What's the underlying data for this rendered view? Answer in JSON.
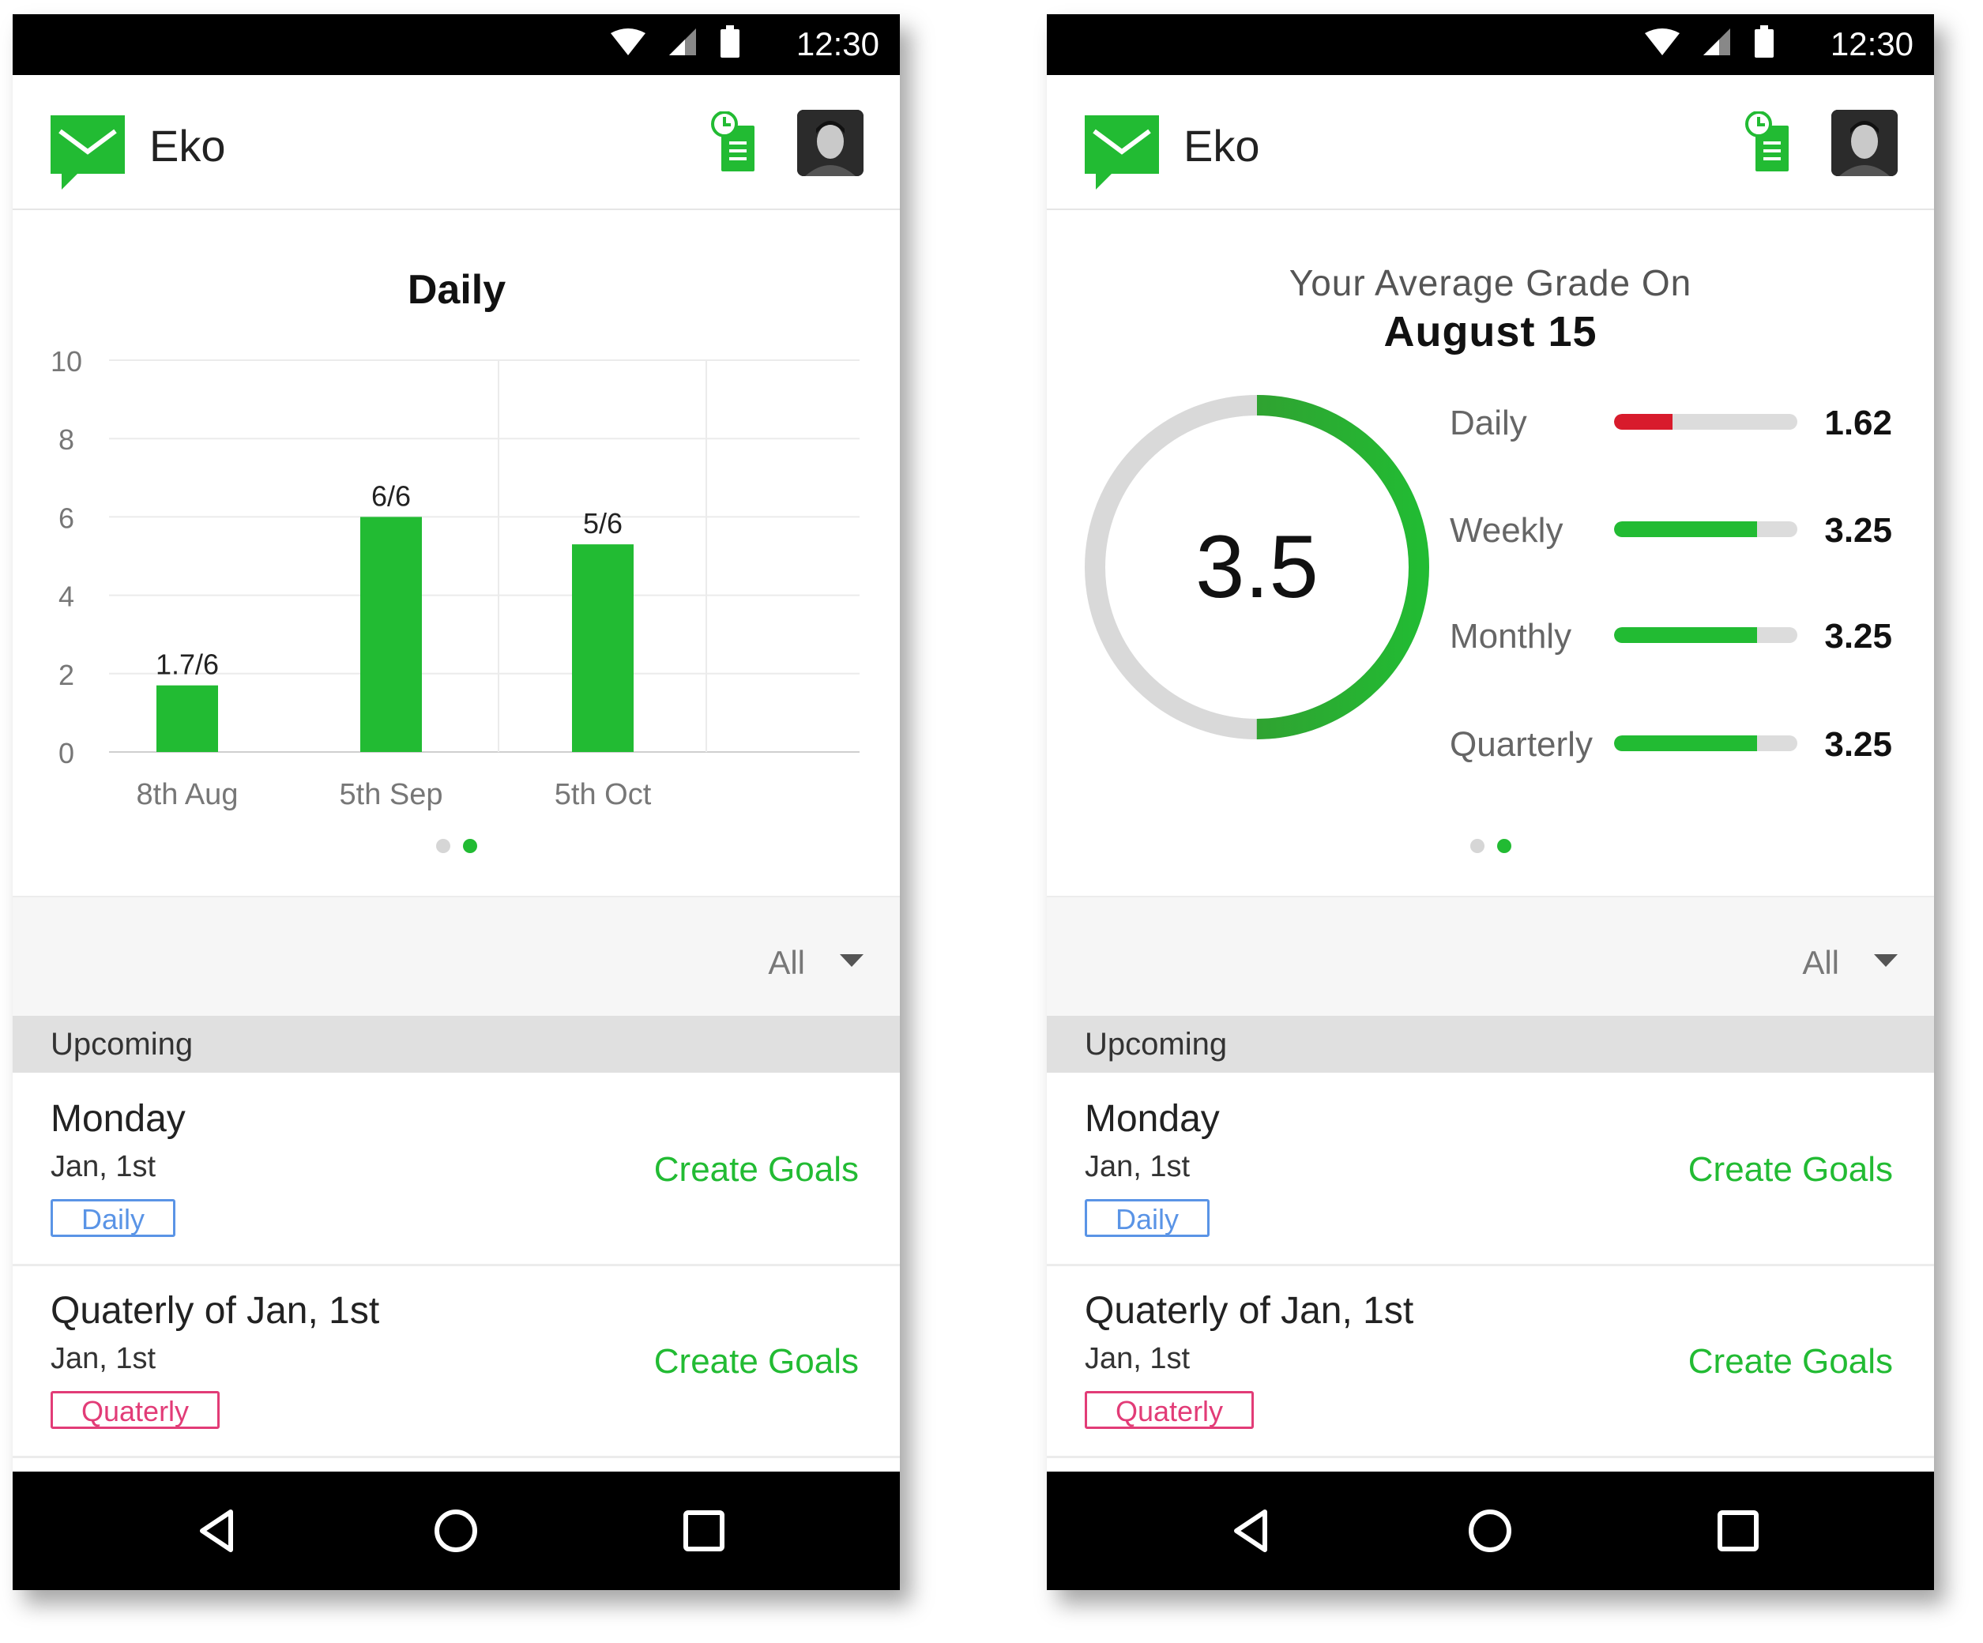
{
  "status_time": "12:30",
  "app": {
    "title": "Eko"
  },
  "accent_color": "#22bb33",
  "icons": [
    "wifi-icon",
    "signal-icon",
    "battery-icon",
    "message-logo-icon",
    "notes-clock-icon",
    "avatar",
    "back-icon",
    "home-icon",
    "recents-icon",
    "chevron-down-icon"
  ],
  "chart_data": {
    "type": "bar",
    "title": "Daily",
    "categories": [
      "8th Aug",
      "5th Sep",
      "5th Oct"
    ],
    "values": [
      1.7,
      6,
      5.3
    ],
    "data_labels": [
      "1.7/6",
      "6/6",
      "5/6"
    ],
    "ylim": [
      0,
      10
    ],
    "yticks": [
      "0",
      "2",
      "4",
      "6",
      "8",
      "10"
    ],
    "grid": true,
    "color": "#22bb33"
  },
  "pager": {
    "pages": 2,
    "active": 1
  },
  "grade": {
    "heading": "Your Average Grade On",
    "date": "August 15",
    "value": "3.5",
    "fraction": 0.5,
    "rows": [
      {
        "label": "Daily",
        "value": "1.62",
        "level": 0.32,
        "color": "#d81b2c"
      },
      {
        "label": "Weekly",
        "value": "3.25",
        "level": 0.78,
        "color": "#22bb33"
      },
      {
        "label": "Monthly",
        "value": "3.25",
        "level": 0.78,
        "color": "#22bb33"
      },
      {
        "label": "Quarterly",
        "value": "3.25",
        "level": 0.78,
        "color": "#22bb33"
      }
    ]
  },
  "filter": {
    "label": "All"
  },
  "upcoming": {
    "header": "Upcoming",
    "items": [
      {
        "title": "Monday",
        "date": "Jan, 1st",
        "tag": "Daily",
        "action": "Create Goals"
      },
      {
        "title": "Quaterly of Jan, 1st",
        "date": "Jan, 1st",
        "tag": "Quaterly",
        "action": "Create Goals"
      }
    ]
  }
}
